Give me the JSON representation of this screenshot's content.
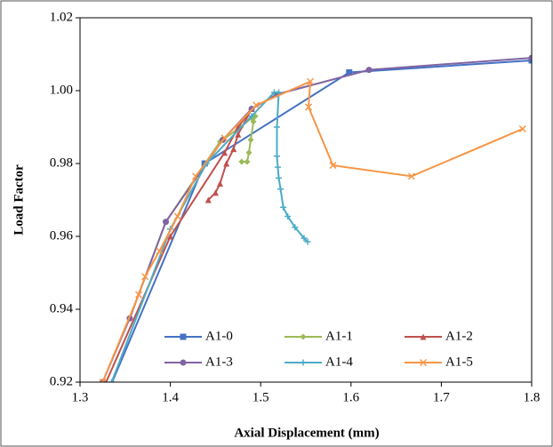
{
  "chart_data": {
    "type": "line",
    "x_label": "Axial Displacement (mm)",
    "y_label": "Load Factor",
    "xlim": [
      1.3,
      1.8
    ],
    "xticks": [
      1.3,
      1.4,
      1.5,
      1.6,
      1.7,
      1.8
    ],
    "ylim": [
      0.92,
      1.02
    ],
    "yticks": [
      0.92,
      0.94,
      0.96,
      0.98,
      {
        "value": 1.0,
        "label": "1.00"
      },
      1.02
    ],
    "grid": false,
    "legend": "bottom",
    "series": [
      {
        "name": "A1-0",
        "color": "#4472c4",
        "marker": "square",
        "x": [
          1.31,
          1.438,
          1.598,
          1.8
        ],
        "values": [
          0.905,
          0.98,
          1.005,
          1.0083
        ]
      },
      {
        "name": "A1-1",
        "color": "#9bbb59",
        "marker": "diamond",
        "x": [
          1.355,
          1.395,
          1.455,
          1.478,
          1.49,
          1.494,
          1.492,
          1.489,
          1.487,
          1.485,
          1.479
        ],
        "values": [
          0.9375,
          0.964,
          0.986,
          0.99,
          0.9925,
          0.993,
          0.9915,
          0.9865,
          0.983,
          0.9805,
          0.9805
        ]
      },
      {
        "name": "A1-2",
        "color": "#c0504d",
        "marker": "triangle",
        "x": [
          1.32,
          1.4,
          1.46,
          1.475,
          1.49,
          1.475,
          1.47,
          1.462,
          1.455,
          1.45,
          1.442
        ],
        "values": [
          0.915,
          0.96,
          0.983,
          0.99,
          0.995,
          0.988,
          0.984,
          0.98,
          0.9745,
          0.972,
          0.97
        ]
      },
      {
        "name": "A1-3",
        "color": "#8064a2",
        "marker": "circle",
        "x": [
          1.325,
          1.355,
          1.395,
          1.458,
          1.49,
          1.518,
          1.62,
          1.8
        ],
        "values": [
          0.92,
          0.9375,
          0.964,
          0.9865,
          0.995,
          0.999,
          1.0057,
          1.009
        ]
      },
      {
        "name": "A1-4",
        "color": "#4bacc6",
        "marker": "plus",
        "x": [
          1.335,
          1.4,
          1.44,
          1.49,
          1.515,
          1.52,
          1.518,
          1.518,
          1.519,
          1.52,
          1.522,
          1.525,
          1.53,
          1.538,
          1.548,
          1.552
        ],
        "values": [
          0.92,
          0.962,
          0.98,
          0.993,
          0.9995,
          0.9995,
          0.99,
          0.982,
          0.979,
          0.976,
          0.973,
          0.968,
          0.9655,
          0.9625,
          0.9595,
          0.9585
        ]
      },
      {
        "name": "A1-5",
        "color": "#f79646",
        "marker": "cross",
        "x": [
          1.325,
          1.365,
          1.372,
          1.388,
          1.408,
          1.428,
          1.46,
          1.495,
          1.555,
          1.553,
          1.58,
          1.667,
          1.79
        ],
        "values": [
          0.92,
          0.944,
          0.949,
          0.956,
          0.9655,
          0.9765,
          0.987,
          0.996,
          1.0025,
          0.9955,
          0.9795,
          0.9765,
          0.9895
        ]
      }
    ]
  }
}
